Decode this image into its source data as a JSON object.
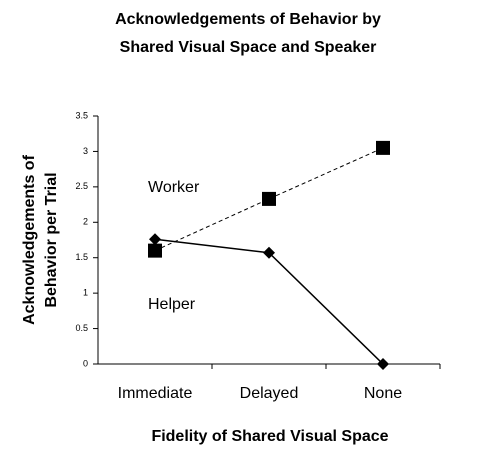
{
  "chart_data": {
    "type": "line",
    "title": [
      "Acknowledgements of Behavior by",
      "Shared Visual Space and Speaker"
    ],
    "x_label": "Fidelity of Shared Visual Space",
    "y_label": [
      "Acknowledgements of",
      "Behavior per Trial"
    ],
    "categories": [
      "Immediate",
      "Delayed",
      "None"
    ],
    "series": [
      {
        "name": "Worker",
        "color": "#000000",
        "dash": true,
        "marker": "square",
        "values": [
          1.6,
          2.33,
          3.05
        ]
      },
      {
        "name": "Helper",
        "color": "#000000",
        "dash": false,
        "marker": "diamond",
        "values": [
          1.76,
          1.57,
          0
        ]
      }
    ],
    "ylim": [
      0,
      3.5
    ],
    "yticks": [
      0,
      0.5,
      1,
      1.5,
      2,
      2.5,
      3,
      3.5
    ],
    "grid": false
  }
}
